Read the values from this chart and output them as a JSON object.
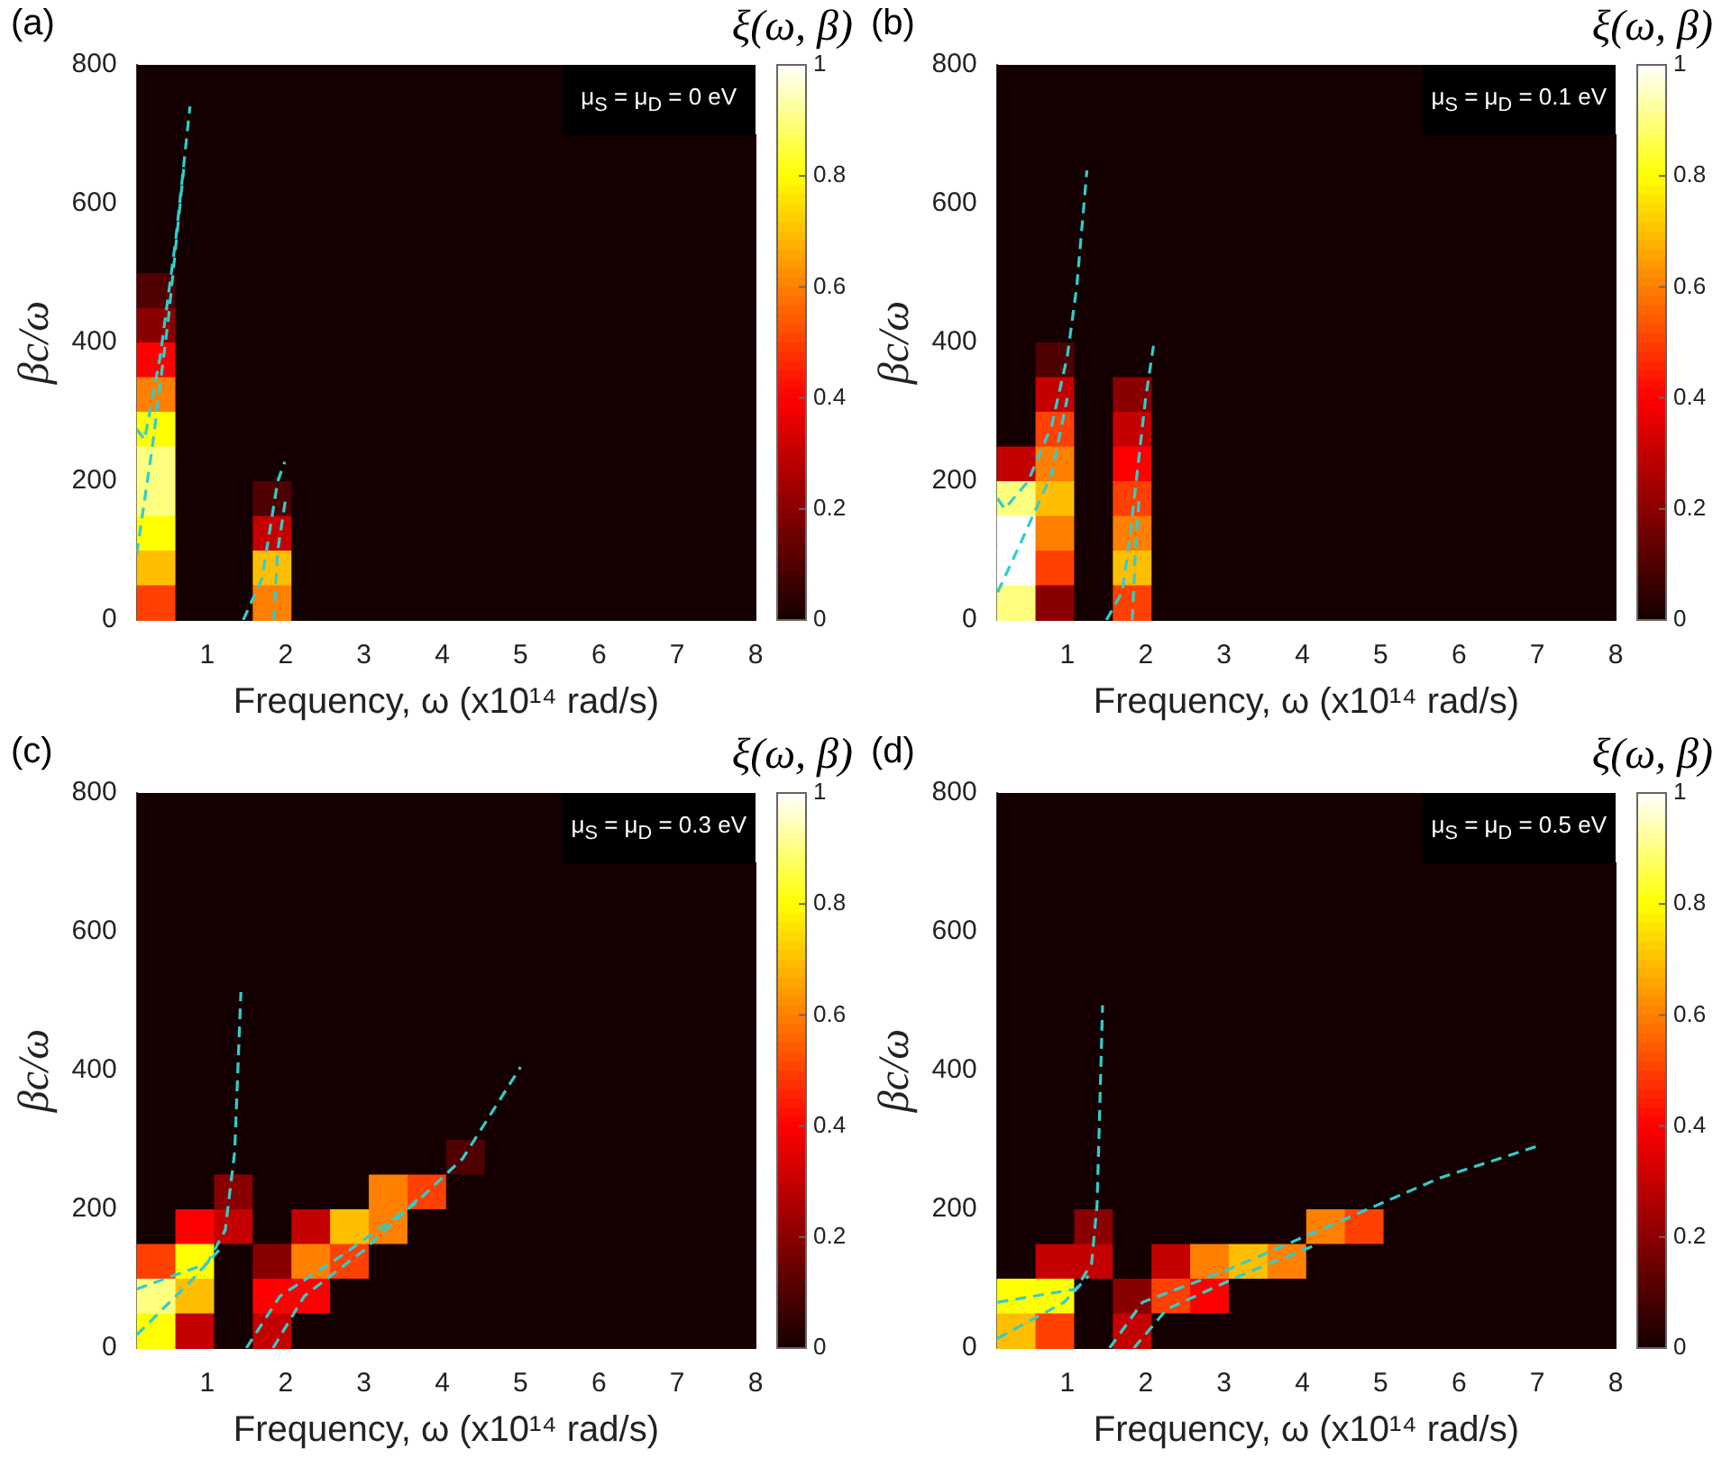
{
  "chart_data": [
    {
      "type": "heatmap",
      "xlabel": "Frequency, ω (x10¹⁴ rad/s)",
      "ylabel": "βc/ω",
      "clabel": "ξ(ω, β)",
      "annotations": [
        "(a)",
        "μ$_{S}$ = μ$_{D}$ = 0 eV"
      ],
      "cells": [
        [
          0,
          0,
          0,
          0,
          0,
          0,
          0,
          0,
          0,
          0,
          0,
          null,
          null,
          null,
          null,
          null
        ],
        [
          0,
          0,
          0,
          0,
          0,
          0,
          0,
          0,
          0,
          0,
          0,
          null,
          null,
          null,
          null,
          null
        ],
        [
          0,
          0,
          0,
          0,
          0,
          0,
          0,
          0,
          0,
          0,
          0,
          0,
          0,
          0,
          0,
          0
        ],
        [
          0,
          0,
          0,
          0,
          0,
          0,
          0,
          0,
          0,
          0,
          0,
          0,
          0,
          0,
          0,
          0
        ],
        [
          0,
          0,
          0,
          0,
          0,
          0,
          0,
          0,
          0,
          0,
          0,
          0,
          0,
          0,
          0,
          0
        ],
        [
          0,
          0,
          0,
          0,
          0,
          0,
          0,
          0,
          0,
          0,
          0,
          0,
          0,
          0,
          0,
          0
        ],
        [
          0.1,
          0,
          0,
          0,
          0,
          0,
          0,
          0,
          0,
          0,
          0,
          0,
          0,
          0,
          0,
          0
        ],
        [
          0.2,
          0,
          0,
          0,
          0,
          0,
          0,
          0,
          0,
          0,
          0,
          0,
          0,
          0,
          0,
          0
        ],
        [
          0.4,
          0,
          0,
          0,
          0,
          0,
          0,
          0,
          0,
          0,
          0,
          0,
          0,
          0,
          0,
          0
        ],
        [
          0.6,
          0,
          0,
          0,
          0,
          0,
          0,
          0,
          0,
          0,
          0,
          0,
          0,
          0,
          0,
          0
        ],
        [
          0.8,
          0,
          0,
          0,
          0,
          0,
          0,
          0,
          0,
          0,
          0,
          0,
          0,
          0,
          0,
          0
        ],
        [
          0.9,
          0,
          0,
          0,
          0,
          0,
          0,
          0,
          0,
          0,
          0,
          0,
          0,
          0,
          0,
          0
        ],
        [
          0.9,
          0,
          0,
          0.1,
          0,
          0,
          0,
          0,
          0,
          0,
          0,
          0,
          0,
          0,
          0,
          0
        ],
        [
          0.8,
          0,
          0,
          0.3,
          0,
          0,
          0,
          0,
          0,
          0,
          0,
          0,
          0,
          0,
          0,
          0
        ],
        [
          0.7,
          0,
          0,
          0.7,
          0,
          0,
          0,
          0,
          0,
          0,
          0,
          0,
          0,
          0,
          0,
          0
        ],
        [
          0.5,
          0,
          0,
          0.6,
          0,
          0,
          0,
          0,
          0,
          0,
          0,
          0,
          0,
          0,
          0,
          0
        ]
      ],
      "clim": [
        0,
        1
      ],
      "cticks": [
        0,
        0.2,
        0.4,
        0.6,
        0.8,
        1
      ],
      "xlim": [
        0.1,
        8
      ],
      "xticks": [
        1,
        2,
        3,
        4,
        5,
        6,
        7,
        8
      ],
      "ylim": [
        0,
        800
      ],
      "yticks": [
        0,
        200,
        400,
        600,
        800
      ],
      "grid": false,
      "line_style": "dashed",
      "marker": "none",
      "series": [
        {
          "type": "line",
          "color": "#33cccc",
          "x": [
            0.1,
            0.2,
            0.4,
            0.6,
            0.78
          ],
          "values": [
            275,
            260,
            380,
            550,
            740
          ]
        },
        {
          "type": "line",
          "color": "#33cccc",
          "x": [
            0.1,
            0.3,
            0.5,
            0.7
          ],
          "values": [
            95,
            250,
            430,
            650
          ]
        },
        {
          "type": "line",
          "color": "#33cccc",
          "x": [
            1.46,
            1.7,
            1.8,
            1.9,
            1.99
          ],
          "values": [
            0,
            60,
            130,
            200,
            228
          ]
        },
        {
          "type": "line",
          "color": "#33cccc",
          "x": [
            1.85,
            1.9,
            2.0
          ],
          "values": [
            0,
            100,
            174
          ]
        }
      ]
    },
    {
      "type": "heatmap",
      "xlabel": "Frequency, ω (x10¹⁴ rad/s)",
      "ylabel": "βc/ω",
      "clabel": "ξ(ω, β)",
      "annotations": [
        "(b)",
        "μ$_{S}$ = μ$_{D}$ = 0.1 eV"
      ],
      "cells": [
        [
          0,
          0,
          0,
          0,
          0,
          0,
          0,
          0,
          0,
          0,
          0,
          null,
          null,
          null,
          null,
          null
        ],
        [
          0,
          0,
          0,
          0,
          0,
          0,
          0,
          0,
          0,
          0,
          0,
          null,
          null,
          null,
          null,
          null
        ],
        [
          0,
          0,
          0,
          0,
          0,
          0,
          0,
          0,
          0,
          0,
          0,
          0,
          0,
          0,
          0,
          0
        ],
        [
          0,
          0,
          0,
          0,
          0,
          0,
          0,
          0,
          0,
          0,
          0,
          0,
          0,
          0,
          0,
          0
        ],
        [
          0,
          0,
          0,
          0,
          0,
          0,
          0,
          0,
          0,
          0,
          0,
          0,
          0,
          0,
          0,
          0
        ],
        [
          0,
          0,
          0,
          0,
          0,
          0,
          0,
          0,
          0,
          0,
          0,
          0,
          0,
          0,
          0,
          0
        ],
        [
          0,
          0,
          0,
          0,
          0,
          0,
          0,
          0,
          0,
          0,
          0,
          0,
          0,
          0,
          0,
          0
        ],
        [
          0,
          0,
          0,
          0,
          0,
          0,
          0,
          0,
          0,
          0,
          0,
          0,
          0,
          0,
          0,
          0
        ],
        [
          0,
          0.1,
          0,
          0,
          0,
          0,
          0,
          0,
          0,
          0,
          0,
          0,
          0,
          0,
          0,
          0
        ],
        [
          0,
          0.3,
          0,
          0.2,
          0,
          0,
          0,
          0,
          0,
          0,
          0,
          0,
          0,
          0,
          0,
          0
        ],
        [
          0,
          0.5,
          0,
          0.3,
          0,
          0,
          0,
          0,
          0,
          0,
          0,
          0,
          0,
          0,
          0,
          0
        ],
        [
          0.3,
          0.6,
          0,
          0.4,
          0,
          0,
          0,
          0,
          0,
          0,
          0,
          0,
          0,
          0,
          0,
          0
        ],
        [
          0.9,
          0.7,
          0,
          0.5,
          0,
          0,
          0,
          0,
          0,
          0,
          0,
          0,
          0,
          0,
          0,
          0
        ],
        [
          1,
          0.6,
          0,
          0.6,
          0,
          0,
          0,
          0,
          0,
          0,
          0,
          0,
          0,
          0,
          0,
          0
        ],
        [
          1,
          0.5,
          0,
          0.7,
          0,
          0,
          0,
          0,
          0,
          0,
          0,
          0,
          0,
          0,
          0,
          0
        ],
        [
          0.9,
          0.2,
          0,
          0.5,
          0,
          0,
          0,
          0,
          0,
          0,
          0,
          0,
          0,
          0,
          0,
          0
        ]
      ],
      "clim": [
        0,
        1
      ],
      "cticks": [
        0,
        0.2,
        0.4,
        0.6,
        0.8,
        1
      ],
      "xlim": [
        0.1,
        8
      ],
      "xticks": [
        1,
        2,
        3,
        4,
        5,
        6,
        7,
        8
      ],
      "ylim": [
        0,
        800
      ],
      "yticks": [
        0,
        200,
        400,
        600,
        800
      ],
      "grid": false,
      "line_style": "dashed",
      "marker": "none",
      "series": [
        {
          "type": "line",
          "color": "#33cccc",
          "x": [
            0.11,
            0.2,
            0.5,
            0.8,
            1.0,
            1.12,
            1.25
          ],
          "values": [
            175,
            160,
            200,
            280,
            380,
            480,
            648
          ]
        },
        {
          "type": "line",
          "color": "#33cccc",
          "x": [
            0.11,
            0.4,
            0.8,
            1.0
          ],
          "values": [
            40,
            110,
            210,
            320
          ]
        },
        {
          "type": "line",
          "color": "#33cccc",
          "x": [
            1.5,
            1.7,
            1.8,
            1.9,
            2.0,
            2.1
          ],
          "values": [
            0,
            40,
            120,
            220,
            320,
            395
          ]
        },
        {
          "type": "line",
          "color": "#33cccc",
          "x": [
            1.83,
            1.87,
            1.92
          ],
          "values": [
            0,
            100,
            180
          ]
        }
      ]
    },
    {
      "type": "heatmap",
      "xlabel": "Frequency, ω (x10¹⁴ rad/s)",
      "ylabel": "βc/ω",
      "clabel": "ξ(ω, β)",
      "annotations": [
        "(c)",
        "μ$_{S}$ = μ$_{D}$ = 0.3 eV"
      ],
      "cells": [
        [
          0,
          0,
          0,
          0,
          0,
          0,
          0,
          0,
          0,
          0,
          0,
          null,
          null,
          null,
          null,
          null
        ],
        [
          0,
          0,
          0,
          0,
          0,
          0,
          0,
          0,
          0,
          0,
          0,
          null,
          null,
          null,
          null,
          null
        ],
        [
          0,
          0,
          0,
          0,
          0,
          0,
          0,
          0,
          0,
          0,
          0,
          0,
          0,
          0,
          0,
          0
        ],
        [
          0,
          0,
          0,
          0,
          0,
          0,
          0,
          0,
          0,
          0,
          0,
          0,
          0,
          0,
          0,
          0
        ],
        [
          0,
          0,
          0,
          0,
          0,
          0,
          0,
          0,
          0,
          0,
          0,
          0,
          0,
          0,
          0,
          0
        ],
        [
          0,
          0,
          0,
          0,
          0,
          0,
          0,
          0,
          0,
          0,
          0,
          0,
          0,
          0,
          0,
          0
        ],
        [
          0,
          0,
          0,
          0,
          0,
          0,
          0,
          0,
          0,
          0,
          0,
          0,
          0,
          0,
          0,
          0
        ],
        [
          0,
          0,
          0,
          0,
          0,
          0,
          0,
          0,
          0,
          0,
          0,
          0,
          0,
          0,
          0,
          0
        ],
        [
          0,
          0,
          0,
          0,
          0,
          0,
          0,
          0,
          0,
          0,
          0,
          0,
          0,
          0,
          0,
          0
        ],
        [
          0,
          0,
          0,
          0,
          0,
          0,
          0,
          0,
          0,
          0,
          0,
          0,
          0,
          0,
          0,
          0
        ],
        [
          0,
          0,
          0,
          0,
          0,
          0,
          0,
          0,
          0.1,
          0,
          0,
          0,
          0,
          0,
          0,
          0
        ],
        [
          0,
          0,
          0.2,
          0,
          0,
          0,
          0.6,
          0.5,
          0,
          0,
          0,
          0,
          0,
          0,
          0,
          0
        ],
        [
          0,
          0.4,
          0.3,
          0,
          0.3,
          0.7,
          0.6,
          0,
          0,
          0,
          0,
          0,
          0,
          0,
          0,
          0
        ],
        [
          0.5,
          0.8,
          0,
          0.2,
          0.6,
          0.5,
          0,
          0,
          0,
          0,
          0,
          0,
          0,
          0,
          0,
          0
        ],
        [
          0.9,
          0.7,
          0,
          0.4,
          0.4,
          0,
          0,
          0,
          0,
          0,
          0,
          0,
          0,
          0,
          0,
          0
        ],
        [
          0.8,
          0.3,
          0,
          0.3,
          0,
          0,
          0,
          0,
          0,
          0,
          0,
          0,
          0,
          0,
          0,
          0
        ]
      ],
      "clim": [
        0,
        1
      ],
      "cticks": [
        0,
        0.2,
        0.4,
        0.6,
        0.8,
        1
      ],
      "xlim": [
        0.1,
        8
      ],
      "xticks": [
        1,
        2,
        3,
        4,
        5,
        6,
        7,
        8
      ],
      "ylim": [
        0,
        800
      ],
      "yticks": [
        0,
        200,
        400,
        600,
        800
      ],
      "grid": false,
      "line_style": "dashed",
      "marker": "none",
      "series": [
        {
          "type": "line",
          "color": "#33cccc",
          "x": [
            0.1,
            1.0,
            1.23,
            1.35,
            1.43
          ],
          "values": [
            85,
            122,
            170,
            282,
            513
          ]
        },
        {
          "type": "line",
          "color": "#33cccc",
          "x": [
            0.1,
            0.77,
            1.15
          ],
          "values": [
            19,
            94,
            141
          ]
        },
        {
          "type": "line",
          "color": "#33cccc",
          "x": [
            1.5,
            1.93,
            2.7,
            3.64,
            4.26,
            5.0
          ],
          "values": [
            0,
            75,
            132,
            207,
            273,
            405
          ]
        },
        {
          "type": "line",
          "color": "#33cccc",
          "x": [
            1.84,
            2.24,
            3.0,
            3.7
          ],
          "values": [
            0,
            75,
            141,
            216
          ]
        }
      ]
    },
    {
      "type": "heatmap",
      "xlabel": "Frequency, ω (x10¹⁴ rad/s)",
      "ylabel": "βc/ω",
      "clabel": "ξ(ω, β)",
      "annotations": [
        "(d)",
        "μ$_{S}$ = μ$_{D}$ = 0.5 eV"
      ],
      "cells": [
        [
          0,
          0,
          0,
          0,
          0,
          0,
          0,
          0,
          0,
          0,
          0,
          null,
          null,
          null,
          null,
          null
        ],
        [
          0,
          0,
          0,
          0,
          0,
          0,
          0,
          0,
          0,
          0,
          0,
          null,
          null,
          null,
          null,
          null
        ],
        [
          0,
          0,
          0,
          0,
          0,
          0,
          0,
          0,
          0,
          0,
          0,
          0,
          0,
          0,
          0,
          0
        ],
        [
          0,
          0,
          0,
          0,
          0,
          0,
          0,
          0,
          0,
          0,
          0,
          0,
          0,
          0,
          0,
          0
        ],
        [
          0,
          0,
          0,
          0,
          0,
          0,
          0,
          0,
          0,
          0,
          0,
          0,
          0,
          0,
          0,
          0
        ],
        [
          0,
          0,
          0,
          0,
          0,
          0,
          0,
          0,
          0,
          0,
          0,
          0,
          0,
          0,
          0,
          0
        ],
        [
          0,
          0,
          0,
          0,
          0,
          0,
          0,
          0,
          0,
          0,
          0,
          0,
          0,
          0,
          0,
          0
        ],
        [
          0,
          0,
          0,
          0,
          0,
          0,
          0,
          0,
          0,
          0,
          0,
          0,
          0,
          0,
          0,
          0
        ],
        [
          0,
          0,
          0,
          0,
          0,
          0,
          0,
          0,
          0,
          0,
          0,
          0,
          0,
          0,
          0,
          0
        ],
        [
          0,
          0,
          0,
          0,
          0,
          0,
          0,
          0,
          0,
          0,
          0,
          0,
          0,
          0,
          0,
          0
        ],
        [
          0,
          0,
          0,
          0,
          0,
          0,
          0,
          0,
          0,
          0,
          0,
          0,
          0,
          0,
          0,
          0
        ],
        [
          0,
          0,
          0,
          0,
          0,
          0,
          0,
          0,
          0,
          0,
          0,
          0,
          0,
          0,
          0,
          0
        ],
        [
          0,
          0,
          0.2,
          0,
          0,
          0,
          0,
          0,
          0.6,
          0.5,
          0,
          0,
          0,
          0,
          0,
          0
        ],
        [
          0,
          0.3,
          0.3,
          0,
          0.3,
          0.6,
          0.7,
          0.6,
          0,
          0,
          0,
          0,
          0,
          0,
          0,
          0
        ],
        [
          0.8,
          0.8,
          0,
          0.2,
          0.5,
          0.4,
          0,
          0,
          0,
          0,
          0,
          0,
          0,
          0,
          0,
          0
        ],
        [
          0.7,
          0.5,
          0,
          0.3,
          0,
          0,
          0,
          0,
          0,
          0,
          0,
          0,
          0,
          0,
          0,
          0
        ]
      ],
      "clim": [
        0,
        1
      ],
      "cticks": [
        0,
        0.2,
        0.4,
        0.6,
        0.8,
        1
      ],
      "xlim": [
        0.1,
        8
      ],
      "xticks": [
        1,
        2,
        3,
        4,
        5,
        6,
        7,
        8
      ],
      "ylim": [
        0,
        800
      ],
      "yticks": [
        0,
        200,
        400,
        600,
        800
      ],
      "grid": false,
      "line_style": "dashed",
      "marker": "none",
      "series": [
        {
          "type": "line",
          "color": "#33cccc",
          "x": [
            0.11,
            1.11,
            1.31,
            1.38,
            1.45
          ],
          "values": [
            66,
            85,
            122,
            207,
            494
          ]
        },
        {
          "type": "line",
          "color": "#33cccc",
          "x": [
            0.11,
            0.96,
            1.27
          ],
          "values": [
            14,
            66,
            104
          ]
        },
        {
          "type": "line",
          "color": "#33cccc",
          "x": [
            1.54,
            1.96,
            3.05,
            4.59,
            5.75,
            7.03
          ],
          "values": [
            0,
            66,
            113,
            188,
            245,
            292
          ]
        },
        {
          "type": "line",
          "color": "#33cccc",
          "x": [
            1.85,
            2.27,
            3.2,
            4.2
          ],
          "values": [
            0,
            56,
            104,
            150
          ]
        }
      ]
    }
  ]
}
